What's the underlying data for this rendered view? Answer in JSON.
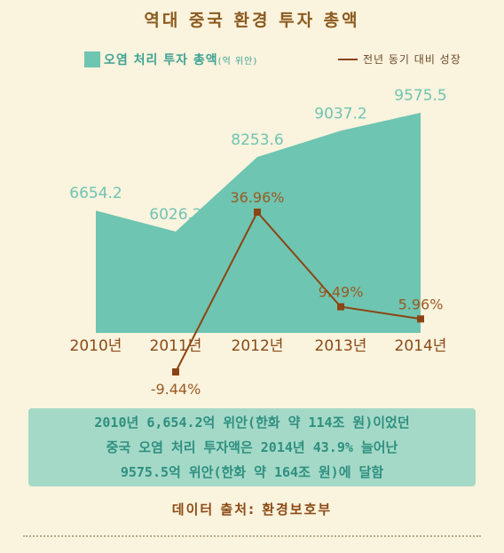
{
  "title": "역대 중국 환경 투자 총액",
  "legend": {
    "area_label": "오염 처리 투자 총액",
    "area_unit": "(억 위안)",
    "line_label": "전년 동기 대비 성장"
  },
  "colors": {
    "background": "#faf3de",
    "area": "#6ec5b1",
    "line": "#8b4513",
    "title": "#8b5a1e",
    "summary_box": "#a4d9c7"
  },
  "chart_data": {
    "type": "area",
    "categories": [
      "2010년",
      "2011년",
      "2012년",
      "2013년",
      "2014년"
    ],
    "series": [
      {
        "name": "오염 처리 투자 총액(억 위안)",
        "type": "area",
        "values": [
          6654.2,
          6026.2,
          8253.6,
          9037.2,
          9575.5
        ],
        "labels": [
          "6654.2",
          "6026.2",
          "8253.6",
          "9037.2",
          "9575.5"
        ]
      },
      {
        "name": "전년 동기 대비 성장",
        "type": "line",
        "x": [
          "2011년",
          "2012년",
          "2013년",
          "2014년"
        ],
        "values": [
          -9.44,
          36.96,
          9.49,
          5.96
        ],
        "labels": [
          "-9.44%",
          "36.96%",
          "9.49%",
          "5.96%"
        ]
      }
    ],
    "grid": false
  },
  "summary": {
    "line1": "2010년 6,654.2억 위안(한화 약 114조 원)이었던",
    "line2": "중국 오염 처리 투자액은 2014년 43.9% 늘어난",
    "line3": "9575.5억 위안(한화 약 164조 원)에 달함"
  },
  "source": "데이터 출처: 환경보호부"
}
